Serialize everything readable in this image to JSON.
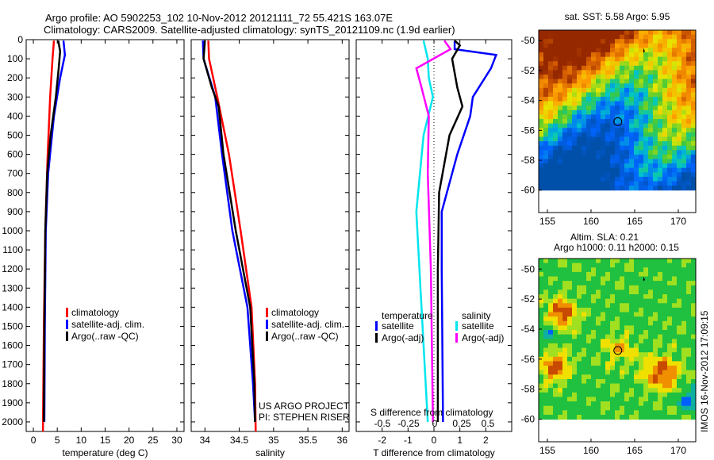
{
  "title_line1": "Argo profile: AO 5902253_102 10-Nov-2012 20121111_72 55.421S 163.07E",
  "title_line2": "Climatology: CARS2009. Satellite-adjusted climatology: synTS_20121109.nc (1.9d earlier)",
  "credit": "US ARGO PROJECT",
  "pi": "PI: STEPHEN RISER",
  "stamp": "IMOS 16-Nov-2012 17:09:15",
  "colors": {
    "climatology": "#ff0000",
    "satellite": "#0000ff",
    "argo": "#000000",
    "sal_sat": "#00e5ee",
    "sal_argo": "#ff00ff"
  },
  "chart_data": [
    {
      "type": "line",
      "xlabel": "temperature (deg C)",
      "ylabel": "",
      "xlim": [
        -1.5,
        31.5
      ],
      "ylim": [
        2050,
        0
      ],
      "xticks": [
        0,
        5,
        10,
        15,
        20,
        25,
        30
      ],
      "yticks": [
        0,
        100,
        200,
        300,
        400,
        500,
        600,
        700,
        800,
        900,
        1000,
        1100,
        1200,
        1300,
        1400,
        1500,
        1600,
        1700,
        1800,
        1900,
        2000
      ],
      "legend": [
        "climatology",
        "satellite-adj. clim.",
        "Argo(..raw -QC)"
      ],
      "series": [
        {
          "name": "climatology",
          "color": "#ff0000",
          "depth": [
            5,
            100,
            300,
            600,
            1000,
            1500,
            2050
          ],
          "values": [
            4.3,
            4.0,
            3.5,
            3.0,
            2.5,
            2.2,
            2.0
          ]
        },
        {
          "name": "satellite-adj. clim.",
          "color": "#0000ff",
          "depth": [
            5,
            80,
            200,
            400,
            700,
            1000,
            1500,
            2000
          ],
          "values": [
            6.3,
            6.6,
            5.6,
            4.3,
            3.1,
            2.6,
            2.4,
            2.3
          ]
        },
        {
          "name": "Argo(..raw -QC)",
          "color": "#000000",
          "depth": [
            5,
            60,
            150,
            300,
            500,
            700,
            1000,
            1500,
            2000
          ],
          "values": [
            5.2,
            5.6,
            5.3,
            4.7,
            3.6,
            2.9,
            2.5,
            2.3,
            2.2
          ]
        }
      ]
    },
    {
      "type": "line",
      "xlabel": "salinity",
      "xlim": [
        33.8,
        36.1
      ],
      "ylim": [
        2050,
        0
      ],
      "xticks": [
        34,
        34.5,
        35,
        35.5,
        36
      ],
      "legend": [
        "climatology",
        "satellite-adj. clim.",
        "Argo(..raw -QC)"
      ],
      "series": [
        {
          "name": "climatology",
          "color": "#ff0000",
          "depth": [
            5,
            100,
            300,
            600,
            1000,
            1400,
            1800,
            2050
          ],
          "values": [
            34.05,
            34.06,
            34.18,
            34.35,
            34.52,
            34.68,
            34.73,
            34.74
          ]
        },
        {
          "name": "satellite-adj. clim.",
          "color": "#0000ff",
          "depth": [
            5,
            100,
            300,
            600,
            1000,
            1400,
            1800,
            2000
          ],
          "values": [
            33.97,
            33.98,
            34.15,
            34.25,
            34.4,
            34.62,
            34.7,
            34.73
          ]
        },
        {
          "name": "Argo(..raw -QC)",
          "color": "#000000",
          "depth": [
            5,
            100,
            250,
            350,
            600,
            1000,
            1400,
            1800,
            2000
          ],
          "values": [
            34.0,
            33.98,
            34.1,
            34.2,
            34.27,
            34.45,
            34.66,
            34.72,
            34.73
          ]
        }
      ]
    },
    {
      "type": "line",
      "xlabel": "T difference from climatology",
      "x2label": "S difference from climatology",
      "xlim": [
        -3,
        3
      ],
      "ylim": [
        2050,
        0
      ],
      "xticks": [
        -2,
        -1,
        0,
        1,
        2
      ],
      "x2ticks": [
        "-0.5",
        "-0.25",
        "0",
        "0.25",
        "0.5"
      ],
      "legend_titles": [
        "temperature",
        "salinity"
      ],
      "legend": [
        "satellite",
        "Argo(-adj)",
        "satellite",
        "Argo(-adj)"
      ],
      "series": [
        {
          "name": "T satellite",
          "color": "#0000ff",
          "depth": [
            5,
            50,
            80,
            150,
            300,
            400,
            600,
            900,
            1200,
            2000
          ],
          "values": [
            0.8,
            0.8,
            2.4,
            2.2,
            1.5,
            1.4,
            0.9,
            0.3,
            0.3,
            0.35
          ]
        },
        {
          "name": "T Argo(-adj)",
          "color": "#000000",
          "depth": [
            5,
            30,
            100,
            250,
            350,
            500,
            800,
            1200,
            2000
          ],
          "values": [
            0.8,
            1.0,
            0.7,
            0.9,
            1.1,
            0.6,
            0.2,
            0.15,
            0.15
          ]
        },
        {
          "name": "S satellite",
          "color": "#00e5ee",
          "depth": [
            5,
            100,
            200,
            300,
            500,
            900,
            1400,
            2000
          ],
          "values": [
            -0.1,
            -0.06,
            -0.05,
            -0.01,
            -0.1,
            -0.17,
            -0.12,
            -0.06
          ]
        },
        {
          "name": "S Argo(-adj)",
          "color": "#ff00ff",
          "depth": [
            5,
            50,
            150,
            250,
            400,
            700,
            1200,
            2000
          ],
          "values": [
            0.1,
            0.16,
            -0.17,
            -0.12,
            -0.05,
            -0.06,
            -0.03,
            -0.01
          ]
        }
      ]
    },
    {
      "type": "heatmap",
      "title": "sat. SST: 5.58 Argo: 5.95",
      "lon_ticks": [
        155,
        160,
        165,
        170
      ],
      "lat_ticks": [
        -50,
        -52,
        -54,
        -56,
        -58,
        -60
      ],
      "lonlim": [
        154,
        172
      ],
      "latlim": [
        -61.5,
        -49.3
      ],
      "float": [
        163.07,
        -55.42
      ]
    },
    {
      "type": "heatmap",
      "title1": "Altim. SLA: 0.21",
      "title2": "Argo h1000: 0.11 h2000: 0.15",
      "lon_ticks": [
        155,
        160,
        165,
        170
      ],
      "lat_ticks": [
        -50,
        -52,
        -54,
        -56,
        -58,
        -60
      ],
      "lonlim": [
        154,
        172
      ],
      "latlim": [
        -61.5,
        -49.3
      ],
      "float": [
        163.07,
        -55.42
      ]
    }
  ]
}
